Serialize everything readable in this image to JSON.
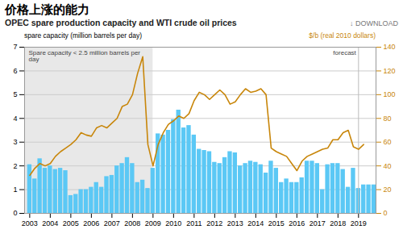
{
  "chart_data": {
    "type": "bar",
    "title": "价格上涨的能力",
    "subtitle": "OPEC spare production capacity and WTI crude oil prices",
    "ylabel": "spare capacity (million barrels per day)",
    "y2label": "$/b (real 2010 dollars)",
    "annotations": [
      {
        "text": "↓ DOWNLOAD"
      },
      {
        "text": "Spare capacity < 2.5 million barrels per day",
        "x": [
          2002.75,
          2009.0
        ],
        "color": "#e8e8e8"
      },
      {
        "text": "forecast",
        "x": 2019.0
      }
    ],
    "series": [
      {
        "type": "bar",
        "color": "#5bc8f5",
        "x": [
          2003.0,
          2003.25,
          2003.5,
          2003.75,
          2004.0,
          2004.25,
          2004.5,
          2004.75,
          2005.0,
          2005.25,
          2005.5,
          2005.75,
          2006.0,
          2006.25,
          2006.5,
          2006.75,
          2007.0,
          2007.25,
          2007.5,
          2007.75,
          2008.0,
          2008.25,
          2008.5,
          2008.75,
          2009.0,
          2009.25,
          2009.5,
          2009.75,
          2010.0,
          2010.25,
          2010.5,
          2010.75,
          2011.0,
          2011.25,
          2011.5,
          2011.75,
          2012.0,
          2012.25,
          2012.5,
          2012.75,
          2013.0,
          2013.25,
          2013.5,
          2013.75,
          2014.0,
          2014.25,
          2014.5,
          2014.75,
          2015.0,
          2015.25,
          2015.5,
          2015.75,
          2016.0,
          2016.25,
          2016.5,
          2016.75,
          2017.0,
          2017.25,
          2017.5,
          2017.75,
          2018.0,
          2018.25,
          2018.5,
          2018.75,
          2019.0,
          2019.25,
          2019.5,
          2019.75
        ],
        "values": [
          2.05,
          1.45,
          2.3,
          1.9,
          2.0,
          1.85,
          1.9,
          1.8,
          0.75,
          0.8,
          1.0,
          1.0,
          1.1,
          1.3,
          1.1,
          1.55,
          1.6,
          2.0,
          2.1,
          2.35,
          2.1,
          1.3,
          1.4,
          1.05,
          1.9,
          3.35,
          3.3,
          3.5,
          3.95,
          4.35,
          3.6,
          3.7,
          3.3,
          2.7,
          2.65,
          2.6,
          2.15,
          2.1,
          2.35,
          2.6,
          2.55,
          2.0,
          2.1,
          2.2,
          2.15,
          2.05,
          1.7,
          2.2,
          1.9,
          1.3,
          1.45,
          1.3,
          1.3,
          1.5,
          2.2,
          2.2,
          2.1,
          1.0,
          2.05,
          2.1,
          2.1,
          1.85,
          1.1,
          1.9,
          1.05,
          1.2,
          1.2,
          1.2
        ]
      },
      {
        "type": "line",
        "color": "#c8860a",
        "axis": "y2",
        "x": [
          2003.0,
          2003.25,
          2003.5,
          2003.75,
          2004.0,
          2004.25,
          2004.5,
          2004.75,
          2005.0,
          2005.25,
          2005.5,
          2005.75,
          2006.0,
          2006.25,
          2006.5,
          2006.75,
          2007.0,
          2007.25,
          2007.5,
          2007.75,
          2008.0,
          2008.25,
          2008.5,
          2008.75,
          2009.0,
          2009.25,
          2009.5,
          2009.75,
          2010.0,
          2010.25,
          2010.5,
          2010.75,
          2011.0,
          2011.25,
          2011.5,
          2011.75,
          2012.0,
          2012.25,
          2012.5,
          2012.75,
          2013.0,
          2013.25,
          2013.5,
          2013.75,
          2014.0,
          2014.25,
          2014.5,
          2014.75,
          2015.0,
          2015.25,
          2015.5,
          2015.75,
          2016.0,
          2016.25,
          2016.5,
          2016.75,
          2017.0,
          2017.25,
          2017.5,
          2017.75,
          2018.0,
          2018.25,
          2018.5,
          2018.75,
          2019.0,
          2019.25
        ],
        "values": [
          32,
          38,
          42,
          40,
          42,
          48,
          52,
          55,
          58,
          62,
          68,
          66,
          65,
          72,
          74,
          72,
          76,
          80,
          90,
          92,
          100,
          118,
          132,
          58,
          40,
          58,
          68,
          75,
          78,
          82,
          80,
          84,
          95,
          102,
          100,
          96,
          100,
          104,
          100,
          92,
          94,
          100,
          105,
          102,
          103,
          105,
          100,
          55,
          52,
          50,
          48,
          42,
          36,
          44,
          48,
          50,
          52,
          54,
          55,
          62,
          62,
          68,
          70,
          56,
          54,
          58
        ]
      }
    ],
    "xlim": [
      2002.75,
      2019.85
    ],
    "xticks": [
      2003,
      2004,
      2005,
      2006,
      2007,
      2008,
      2009,
      2010,
      2011,
      2012,
      2013,
      2014,
      2015,
      2016,
      2017,
      2018,
      2019
    ],
    "ylim": [
      0,
      7
    ],
    "yticks": [
      0,
      1,
      2,
      3,
      4,
      5,
      6,
      7
    ],
    "y2lim": [
      0,
      140
    ],
    "y2ticks": [
      0,
      20,
      40,
      60,
      80,
      100,
      120,
      140
    ],
    "grid": true
  }
}
